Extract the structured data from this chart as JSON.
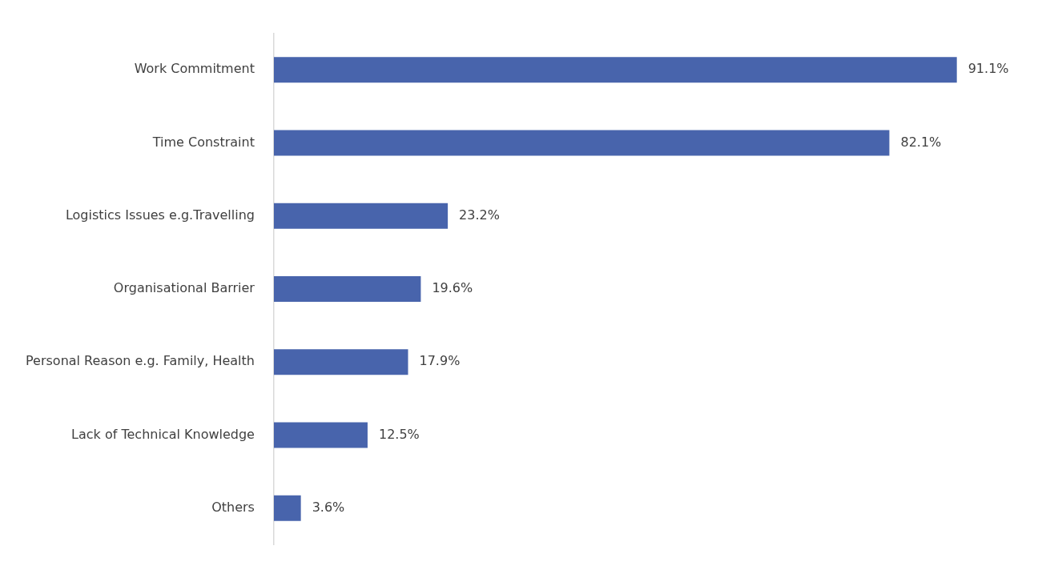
{
  "chart_data": {
    "type": "bar",
    "orientation": "horizontal",
    "categories": [
      "Work Commitment",
      "Time Constraint",
      "Logistics Issues e.g.Travelling",
      "Organisational Barrier",
      "Personal Reason e.g. Family, Health",
      "Lack of Technical Knowledge",
      "Others"
    ],
    "values": [
      91.1,
      82.1,
      23.2,
      19.6,
      17.9,
      12.5,
      3.6
    ],
    "value_labels": [
      "91.1%",
      "82.1%",
      "23.2%",
      "19.6%",
      "17.9%",
      "12.5%",
      "3.6%"
    ],
    "color": "#4864ac"
  }
}
